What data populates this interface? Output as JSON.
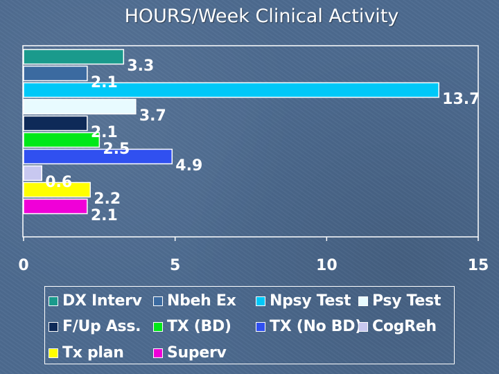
{
  "chart_data": {
    "type": "bar",
    "orientation": "horizontal",
    "title": "HOURS/Week Clinical Activity",
    "xlim": [
      0,
      15
    ],
    "xticks": [
      "0",
      "5",
      "10",
      "15"
    ],
    "grid": false,
    "legend_position": "bottom",
    "series": [
      {
        "name": "DX Interv",
        "value": 3.3,
        "label": "3.3",
        "color": "#1a9a8c"
      },
      {
        "name": "Nbeh Ex",
        "value": 2.1,
        "label": "2.1",
        "color": "#3b6aa0"
      },
      {
        "name": "Npsy Test",
        "value": 13.7,
        "label": "13.7",
        "color": "#00c8f8"
      },
      {
        "name": "Psy Test",
        "value": 3.7,
        "label": "3.7",
        "color": "#e8fbff"
      },
      {
        "name": "F/Up Ass.",
        "value": 2.1,
        "label": "2.1",
        "color": "#0e2a58"
      },
      {
        "name": "TX (BD)",
        "value": 2.5,
        "label": "2.5",
        "color": "#00e818"
      },
      {
        "name": "TX (No BD)",
        "value": 4.9,
        "label": "4.9",
        "color": "#3050f0"
      },
      {
        "name": "CogReh",
        "value": 0.6,
        "label": "0.6",
        "color": "#c8c8f0"
      },
      {
        "name": "Tx plan",
        "value": 2.2,
        "label": "2.2",
        "color": "#ffff00"
      },
      {
        "name": "Superv",
        "value": 2.1,
        "label": "2.1",
        "color": "#f000d8"
      }
    ]
  }
}
